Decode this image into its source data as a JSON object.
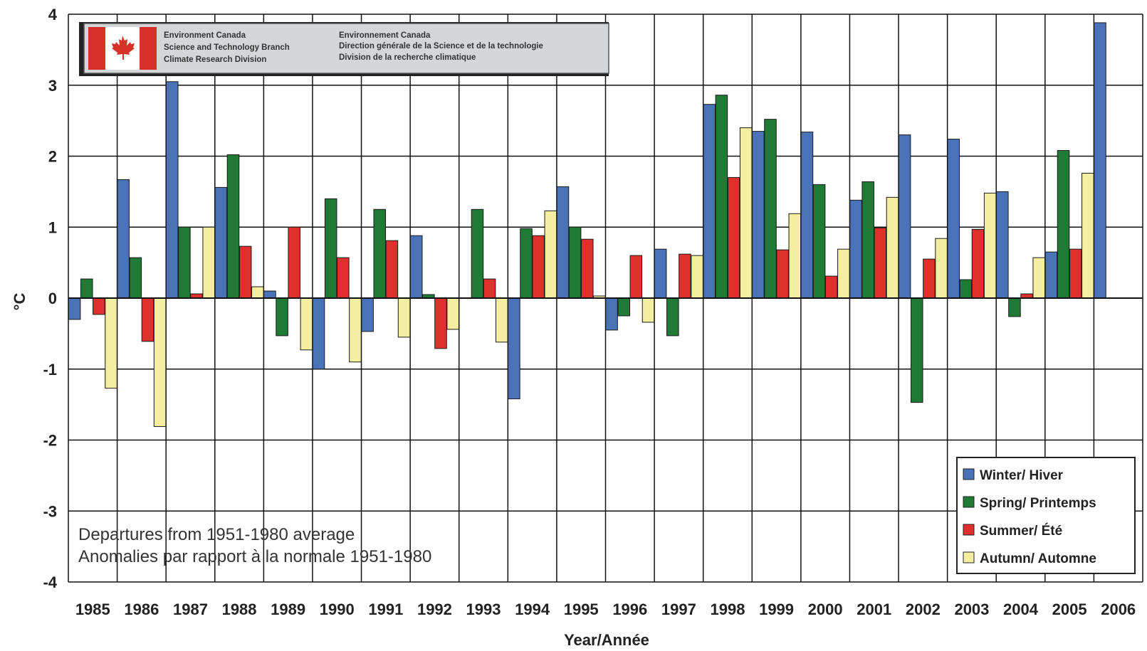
{
  "chart_data": {
    "type": "bar",
    "categories": [
      "1985",
      "1986",
      "1987",
      "1988",
      "1989",
      "1990",
      "1991",
      "1992",
      "1993",
      "1994",
      "1995",
      "1996",
      "1997",
      "1998",
      "1999",
      "2000",
      "2001",
      "2002",
      "2003",
      "2004",
      "2005",
      "2006"
    ],
    "series": [
      {
        "name": "Winter/ Hiver",
        "color": "#4a72b8",
        "values": [
          -0.3,
          1.67,
          3.05,
          1.56,
          0.1,
          -1.0,
          -0.47,
          0.88,
          0.0,
          -1.42,
          1.57,
          -0.45,
          0.69,
          2.73,
          2.35,
          2.34,
          1.38,
          2.3,
          2.24,
          1.5,
          0.65,
          3.88
        ]
      },
      {
        "name": "Spring/ Printemps",
        "color": "#1f7a36",
        "values": [
          0.27,
          0.57,
          1.0,
          2.02,
          -0.53,
          1.4,
          1.25,
          0.05,
          1.25,
          0.98,
          1.0,
          -0.25,
          -0.53,
          2.86,
          2.52,
          1.6,
          1.64,
          -1.47,
          0.26,
          -0.26,
          2.08,
          null
        ]
      },
      {
        "name": "Summer/ Été",
        "color": "#e0302e",
        "values": [
          -0.23,
          -0.61,
          0.06,
          0.73,
          1.0,
          0.57,
          0.81,
          -0.71,
          0.27,
          0.88,
          0.83,
          0.6,
          0.62,
          1.7,
          0.68,
          0.31,
          0.99,
          0.55,
          0.97,
          0.06,
          0.69,
          null
        ]
      },
      {
        "name": "Autumn/ Automne",
        "color": "#f5eea0",
        "values": [
          -1.27,
          -1.81,
          1.0,
          0.16,
          -0.73,
          -0.9,
          -0.55,
          -0.44,
          -0.62,
          1.23,
          0.03,
          -0.34,
          0.6,
          2.4,
          1.19,
          0.69,
          1.42,
          0.84,
          1.48,
          0.57,
          1.76,
          null
        ]
      }
    ],
    "ylabel": "°C",
    "xlabel": "Year/Année",
    "ylim": [
      -4,
      4
    ],
    "yticks": [
      "4",
      "3",
      "2",
      "1",
      "0",
      "-1",
      "-2",
      "-3",
      "-4"
    ],
    "grid": true,
    "legend_position": "bottom-right",
    "annotation": {
      "line1": "Departures from 1951-1980 average",
      "line2": "Anomalies par rapport à la normale 1951-1980"
    },
    "logo": {
      "en_line1": "Environment Canada",
      "en_line2": "Science and Technology Branch",
      "en_line3": "Climate Research Division",
      "fr_line1": "Environnement Canada",
      "fr_line2": "Direction générale de la Science et de la technologie",
      "fr_line3": "Division de la recherche climatique"
    }
  }
}
